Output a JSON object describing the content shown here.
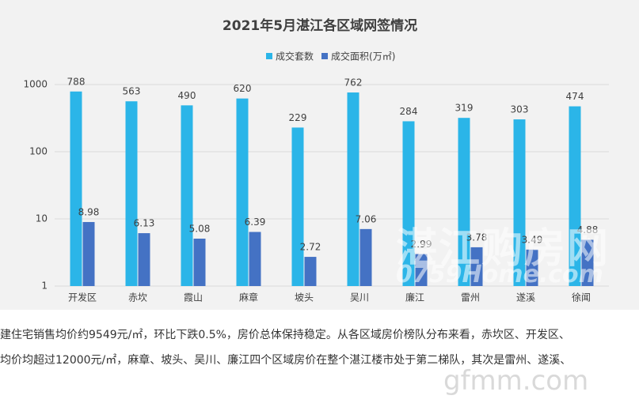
{
  "chart_data": {
    "type": "bar",
    "title": "2021年5月湛江各区域网签情况",
    "categories": [
      "开发区",
      "赤坎",
      "霞山",
      "麻章",
      "坡头",
      "吴川",
      "廉江",
      "雷州",
      "遂溪",
      "徐闻"
    ],
    "series": [
      {
        "name": "成交套数",
        "color": "#2bb5e8",
        "values": [
          788,
          563,
          490,
          620,
          229,
          762,
          284,
          319,
          303,
          474
        ]
      },
      {
        "name": "成交面积(万㎡)",
        "color": "#4472c4",
        "values": [
          8.98,
          6.13,
          5.08,
          6.39,
          2.72,
          7.06,
          2.99,
          3.78,
          3.49,
          4.88
        ]
      }
    ],
    "ylim": [
      1,
      1000
    ],
    "yticks": [
      1,
      10,
      100,
      1000
    ],
    "log_scale": true,
    "grid": true,
    "legend": "top"
  },
  "watermarks": [
    "湛江购房网",
    "0759Home.com",
    "gfmm.com"
  ],
  "paragraph": [
    "建住宅销售均价约9549元/㎡，环比下跌0.5%，房价总体保持稳定。从各区域房价榜队分布来看，赤坎区、开发区、",
    "均价均超过12000元/㎡，麻章、坡头、吴川、廉江四个区域房价在整个湛江楼市处于第二梯队，其次是雷州、遂溪、"
  ]
}
